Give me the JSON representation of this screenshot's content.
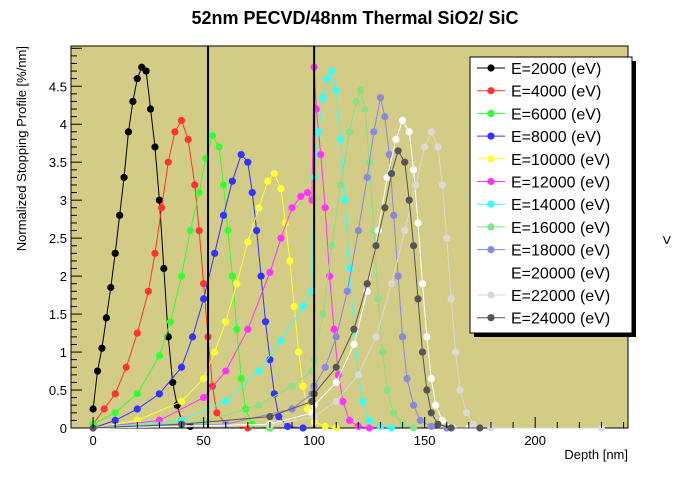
{
  "chart_data": {
    "type": "line",
    "title": "52nm PECVD/48nm Thermal SiO2/ SiC",
    "xlabel": "Depth [nm]",
    "ylabel": "Normalized Stopping Profile [%/nm]",
    "side_mark": "<",
    "xlim": [
      -10,
      242
    ],
    "ylim": [
      0,
      5.03
    ],
    "x_ticks": [
      0,
      50,
      100,
      150,
      200
    ],
    "y_ticks": [
      0,
      0.5,
      1,
      1.5,
      2,
      2.5,
      3,
      3.5,
      4,
      4.5
    ],
    "y_tick_labels": [
      "0",
      "0.5",
      "1",
      "1.5",
      "2",
      "2.5",
      "3",
      "3.5",
      "4",
      "4.5"
    ],
    "vertical_lines": [
      52,
      100
    ],
    "background": "#d3cc87",
    "grid": false,
    "legend_position": "top-right",
    "series": [
      {
        "name": "E=2000 (eV)",
        "color": "#000000",
        "points": [
          [
            0,
            0.25
          ],
          [
            2,
            0.75
          ],
          [
            4,
            1.05
          ],
          [
            6,
            1.45
          ],
          [
            8,
            1.85
          ],
          [
            10,
            2.3
          ],
          [
            12,
            2.8
          ],
          [
            14,
            3.3
          ],
          [
            16,
            3.9
          ],
          [
            18,
            4.3
          ],
          [
            20,
            4.6
          ],
          [
            22,
            4.75
          ],
          [
            24,
            4.7
          ],
          [
            26,
            4.2
          ],
          [
            28,
            3.7
          ],
          [
            30,
            3.0
          ],
          [
            32,
            2.1
          ],
          [
            34,
            1.2
          ],
          [
            36,
            0.6
          ],
          [
            38,
            0.3
          ],
          [
            40,
            0.1
          ],
          [
            44,
            0.02
          ]
        ]
      },
      {
        "name": "E=4000 (eV)",
        "color": "#ff3333",
        "points": [
          [
            0,
            0.05
          ],
          [
            5,
            0.25
          ],
          [
            10,
            0.45
          ],
          [
            15,
            0.8
          ],
          [
            20,
            1.25
          ],
          [
            25,
            1.8
          ],
          [
            28,
            2.3
          ],
          [
            31,
            2.9
          ],
          [
            34,
            3.5
          ],
          [
            37,
            3.9
          ],
          [
            40,
            4.05
          ],
          [
            43,
            3.8
          ],
          [
            46,
            3.2
          ],
          [
            48,
            2.6
          ],
          [
            50,
            1.9
          ],
          [
            52,
            1.2
          ],
          [
            54,
            0.55
          ],
          [
            56,
            0.2
          ],
          [
            60,
            0.05
          ],
          [
            70,
            0
          ]
        ]
      },
      {
        "name": "E=6000 (eV)",
        "color": "#33ff33",
        "points": [
          [
            0,
            0.05
          ],
          [
            10,
            0.2
          ],
          [
            20,
            0.45
          ],
          [
            30,
            0.95
          ],
          [
            35,
            1.4
          ],
          [
            40,
            2.0
          ],
          [
            44,
            2.6
          ],
          [
            48,
            3.1
          ],
          [
            51,
            3.55
          ],
          [
            54,
            3.85
          ],
          [
            57,
            3.7
          ],
          [
            59,
            3.2
          ],
          [
            61,
            2.6
          ],
          [
            63,
            2.0
          ],
          [
            65,
            1.3
          ],
          [
            67,
            0.65
          ],
          [
            69,
            0.25
          ],
          [
            72,
            0.05
          ],
          [
            80,
            0
          ]
        ]
      },
      {
        "name": "E=8000 (eV)",
        "color": "#3333ff",
        "points": [
          [
            0,
            0
          ],
          [
            10,
            0.1
          ],
          [
            20,
            0.25
          ],
          [
            30,
            0.45
          ],
          [
            40,
            0.8
          ],
          [
            45,
            1.2
          ],
          [
            50,
            1.7
          ],
          [
            55,
            2.3
          ],
          [
            59,
            2.8
          ],
          [
            63,
            3.25
          ],
          [
            67,
            3.6
          ],
          [
            70,
            3.5
          ],
          [
            72,
            3.1
          ],
          [
            74,
            2.6
          ],
          [
            76,
            2.0
          ],
          [
            78,
            1.4
          ],
          [
            80,
            0.9
          ],
          [
            82,
            0.45
          ],
          [
            84,
            0.15
          ],
          [
            88,
            0.02
          ],
          [
            95,
            0
          ]
        ]
      },
      {
        "name": "E=10000 (eV)",
        "color": "#ffff33",
        "points": [
          [
            0,
            0
          ],
          [
            20,
            0.1
          ],
          [
            40,
            0.35
          ],
          [
            50,
            0.65
          ],
          [
            55,
            1.0
          ],
          [
            60,
            1.4
          ],
          [
            65,
            1.9
          ],
          [
            70,
            2.45
          ],
          [
            75,
            2.9
          ],
          [
            79,
            3.25
          ],
          [
            82,
            3.35
          ],
          [
            85,
            3.15
          ],
          [
            87,
            2.7
          ],
          [
            89,
            2.2
          ],
          [
            91,
            1.6
          ],
          [
            93,
            1.0
          ],
          [
            95,
            0.55
          ],
          [
            97,
            0.25
          ],
          [
            100,
            0.08
          ],
          [
            105,
            0.02
          ],
          [
            110,
            0
          ]
        ]
      },
      {
        "name": "E=12000 (eV)",
        "color": "#ff33ff",
        "points": [
          [
            0,
            0
          ],
          [
            30,
            0.1
          ],
          [
            50,
            0.4
          ],
          [
            60,
            0.75
          ],
          [
            70,
            1.3
          ],
          [
            80,
            2.05
          ],
          [
            85,
            2.5
          ],
          [
            90,
            2.9
          ],
          [
            94,
            3.05
          ],
          [
            97,
            3.1
          ],
          [
            99,
            3.0
          ],
          [
            100,
            4.75
          ],
          [
            101,
            4.2
          ],
          [
            103,
            3.6
          ],
          [
            105,
            2.9
          ],
          [
            107,
            2.0
          ],
          [
            109,
            1.3
          ],
          [
            111,
            0.7
          ],
          [
            113,
            0.35
          ],
          [
            116,
            0.1
          ],
          [
            120,
            0.02
          ],
          [
            125,
            0
          ]
        ]
      },
      {
        "name": "E=14000 (eV)",
        "color": "#33ffff",
        "points": [
          [
            0,
            0
          ],
          [
            40,
            0.1
          ],
          [
            60,
            0.35
          ],
          [
            75,
            0.75
          ],
          [
            85,
            1.15
          ],
          [
            95,
            1.6
          ],
          [
            99,
            1.8
          ],
          [
            100,
            3.3
          ],
          [
            102,
            3.9
          ],
          [
            104,
            4.35
          ],
          [
            106,
            4.6
          ],
          [
            108,
            4.7
          ],
          [
            110,
            4.45
          ],
          [
            112,
            3.8
          ],
          [
            114,
            3.0
          ],
          [
            116,
            2.1
          ],
          [
            118,
            1.3
          ],
          [
            120,
            0.7
          ],
          [
            122,
            0.35
          ],
          [
            125,
            0.1
          ],
          [
            130,
            0.02
          ],
          [
            135,
            0
          ]
        ]
      },
      {
        "name": "E=16000 (eV)",
        "color": "#88e088",
        "points": [
          [
            0,
            0
          ],
          [
            50,
            0.08
          ],
          [
            75,
            0.3
          ],
          [
            90,
            0.55
          ],
          [
            99,
            0.75
          ],
          [
            100,
            0.9
          ],
          [
            104,
            1.5
          ],
          [
            108,
            2.4
          ],
          [
            112,
            3.2
          ],
          [
            116,
            3.9
          ],
          [
            119,
            4.3
          ],
          [
            121,
            4.45
          ],
          [
            123,
            4.2
          ],
          [
            125,
            3.5
          ],
          [
            127,
            2.6
          ],
          [
            129,
            1.7
          ],
          [
            131,
            1.0
          ],
          [
            133,
            0.5
          ],
          [
            136,
            0.2
          ],
          [
            140,
            0.05
          ],
          [
            145,
            0
          ]
        ]
      },
      {
        "name": "E=18000 (eV)",
        "color": "#8888e0",
        "points": [
          [
            0,
            0
          ],
          [
            60,
            0.05
          ],
          [
            90,
            0.25
          ],
          [
            99,
            0.45
          ],
          [
            100,
            0.55
          ],
          [
            105,
            0.8
          ],
          [
            110,
            1.2
          ],
          [
            115,
            1.8
          ],
          [
            120,
            2.6
          ],
          [
            124,
            3.3
          ],
          [
            127,
            3.9
          ],
          [
            130,
            4.35
          ],
          [
            132,
            4.1
          ],
          [
            134,
            3.6
          ],
          [
            136,
            2.8
          ],
          [
            138,
            2.0
          ],
          [
            140,
            1.2
          ],
          [
            142,
            0.65
          ],
          [
            145,
            0.3
          ],
          [
            148,
            0.1
          ],
          [
            153,
            0.02
          ],
          [
            160,
            0
          ]
        ]
      },
      {
        "name": "E=20000 (eV)",
        "color": "#ffffff",
        "points": [
          [
            0,
            0
          ],
          [
            80,
            0.05
          ],
          [
            99,
            0.2
          ],
          [
            100,
            0.3
          ],
          [
            110,
            0.6
          ],
          [
            118,
            1.1
          ],
          [
            124,
            1.8
          ],
          [
            129,
            2.6
          ],
          [
            133,
            3.3
          ],
          [
            137,
            3.8
          ],
          [
            140,
            4.05
          ],
          [
            143,
            3.9
          ],
          [
            145,
            3.4
          ],
          [
            147,
            2.7
          ],
          [
            149,
            1.9
          ],
          [
            151,
            1.2
          ],
          [
            153,
            0.65
          ],
          [
            155,
            0.3
          ],
          [
            158,
            0.1
          ],
          [
            163,
            0
          ],
          [
            170,
            0
          ]
        ]
      },
      {
        "name": "E=22000 (eV)",
        "color": "#dcd8d4",
        "points": [
          [
            0,
            0
          ],
          [
            80,
            0.03
          ],
          [
            100,
            0.15
          ],
          [
            110,
            0.35
          ],
          [
            120,
            0.7
          ],
          [
            128,
            1.2
          ],
          [
            135,
            1.9
          ],
          [
            141,
            2.6
          ],
          [
            146,
            3.2
          ],
          [
            150,
            3.7
          ],
          [
            153,
            3.9
          ],
          [
            156,
            3.7
          ],
          [
            158,
            3.2
          ],
          [
            160,
            2.5
          ],
          [
            162,
            1.7
          ],
          [
            164,
            1.0
          ],
          [
            166,
            0.5
          ],
          [
            169,
            0.2
          ],
          [
            172,
            0.05
          ],
          [
            180,
            0
          ],
          [
            230,
            0
          ]
        ]
      },
      {
        "name": "E=24000 (eV)",
        "color": "#555555",
        "points": [
          [
            0,
            0
          ],
          [
            40,
            0.05
          ],
          [
            80,
            0.15
          ],
          [
            99,
            0.35
          ],
          [
            100,
            0.45
          ],
          [
            110,
            0.8
          ],
          [
            118,
            1.3
          ],
          [
            124,
            1.9
          ],
          [
            128,
            2.4
          ],
          [
            132,
            2.9
          ],
          [
            135,
            3.35
          ],
          [
            138,
            3.65
          ],
          [
            141,
            3.5
          ],
          [
            143,
            3.0
          ],
          [
            145,
            2.4
          ],
          [
            147,
            1.7
          ],
          [
            149,
            1.0
          ],
          [
            151,
            0.5
          ],
          [
            153,
            0.2
          ],
          [
            156,
            0.05
          ],
          [
            162,
            0
          ],
          [
            175,
            0
          ]
        ]
      }
    ]
  }
}
